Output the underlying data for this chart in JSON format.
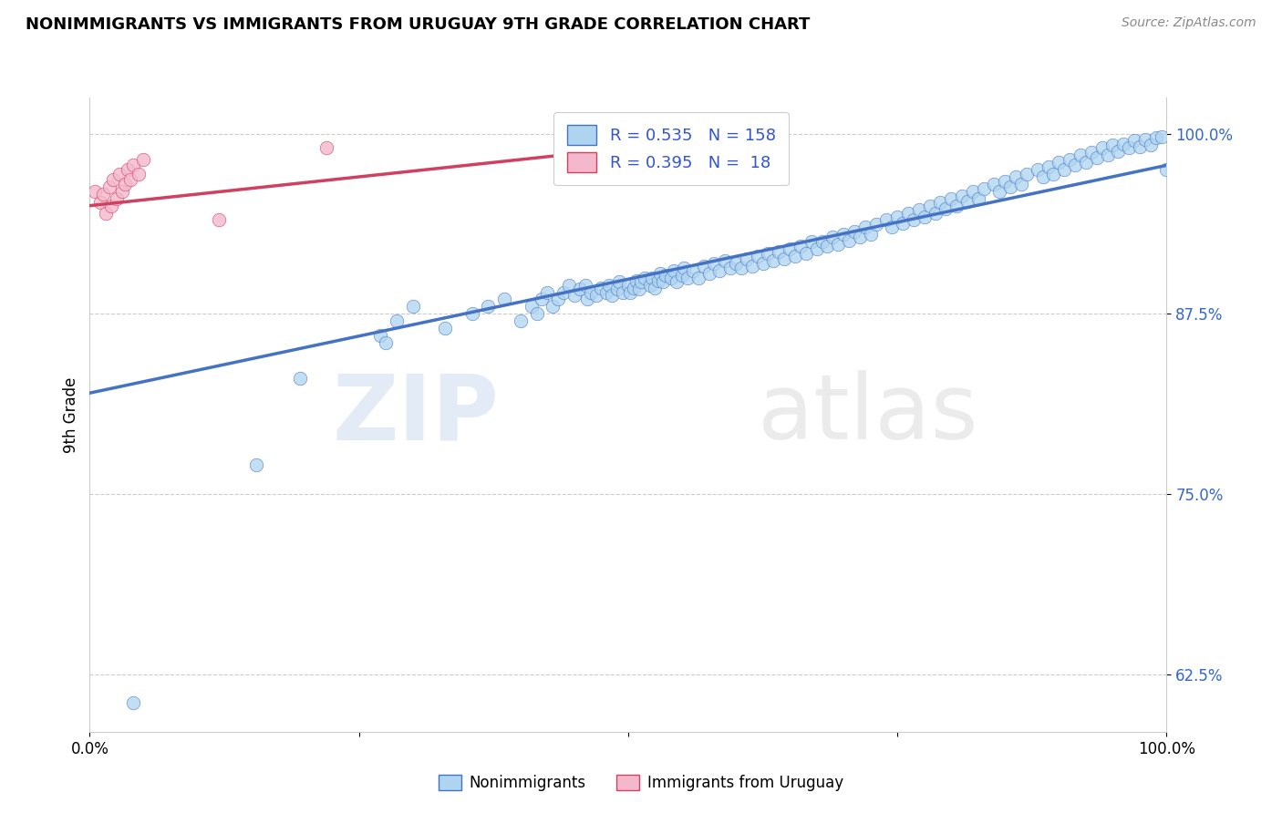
{
  "title": "NONIMMIGRANTS VS IMMIGRANTS FROM URUGUAY 9TH GRADE CORRELATION CHART",
  "source_text": "Source: ZipAtlas.com",
  "ylabel": "9th Grade",
  "xlim": [
    0,
    1
  ],
  "ylim": [
    0.585,
    1.025
  ],
  "yticks": [
    0.625,
    0.75,
    0.875,
    1.0
  ],
  "ytick_labels": [
    "62.5%",
    "75.0%",
    "87.5%",
    "100.0%"
  ],
  "blue_color": "#aed4f0",
  "blue_line_color": "#4472c4",
  "pink_color": "#f4b8cc",
  "pink_line_color": "#d04060",
  "watermark_zip": "ZIP",
  "watermark_atlas": "atlas",
  "legend_r_blue": "R = 0.535",
  "legend_n_blue": "N = 158",
  "legend_r_pink": "R = 0.395",
  "legend_n_pink": "N =  18",
  "blue_scatter_x": [
    0.04,
    0.155,
    0.195,
    0.27,
    0.275,
    0.285,
    0.3,
    0.33,
    0.355,
    0.37,
    0.385,
    0.4,
    0.41,
    0.415,
    0.42,
    0.425,
    0.43,
    0.435,
    0.44,
    0.445,
    0.45,
    0.455,
    0.46,
    0.462,
    0.465,
    0.47,
    0.475,
    0.48,
    0.482,
    0.485,
    0.49,
    0.492,
    0.495,
    0.5,
    0.502,
    0.505,
    0.508,
    0.51,
    0.512,
    0.515,
    0.52,
    0.522,
    0.525,
    0.528,
    0.53,
    0.532,
    0.535,
    0.54,
    0.542,
    0.545,
    0.55,
    0.552,
    0.555,
    0.56,
    0.565,
    0.57,
    0.575,
    0.58,
    0.585,
    0.59,
    0.595,
    0.6,
    0.605,
    0.61,
    0.615,
    0.62,
    0.625,
    0.63,
    0.635,
    0.64,
    0.645,
    0.65,
    0.655,
    0.66,
    0.665,
    0.67,
    0.675,
    0.68,
    0.685,
    0.69,
    0.695,
    0.7,
    0.705,
    0.71,
    0.715,
    0.72,
    0.725,
    0.73,
    0.74,
    0.745,
    0.75,
    0.755,
    0.76,
    0.765,
    0.77,
    0.775,
    0.78,
    0.785,
    0.79,
    0.795,
    0.8,
    0.805,
    0.81,
    0.815,
    0.82,
    0.825,
    0.83,
    0.84,
    0.845,
    0.85,
    0.855,
    0.86,
    0.865,
    0.87,
    0.88,
    0.885,
    0.89,
    0.895,
    0.9,
    0.905,
    0.91,
    0.915,
    0.92,
    0.925,
    0.93,
    0.935,
    0.94,
    0.945,
    0.95,
    0.955,
    0.96,
    0.965,
    0.97,
    0.975,
    0.98,
    0.985,
    0.99,
    0.995,
    1.0
  ],
  "blue_scatter_y": [
    0.605,
    0.77,
    0.83,
    0.86,
    0.855,
    0.87,
    0.88,
    0.865,
    0.875,
    0.88,
    0.885,
    0.87,
    0.88,
    0.875,
    0.885,
    0.89,
    0.88,
    0.885,
    0.89,
    0.895,
    0.888,
    0.892,
    0.895,
    0.885,
    0.89,
    0.888,
    0.893,
    0.89,
    0.895,
    0.888,
    0.892,
    0.897,
    0.89,
    0.895,
    0.89,
    0.893,
    0.898,
    0.892,
    0.897,
    0.9,
    0.895,
    0.9,
    0.893,
    0.898,
    0.903,
    0.897,
    0.902,
    0.9,
    0.905,
    0.897,
    0.902,
    0.907,
    0.9,
    0.905,
    0.9,
    0.908,
    0.903,
    0.91,
    0.905,
    0.912,
    0.907,
    0.91,
    0.907,
    0.913,
    0.908,
    0.915,
    0.91,
    0.917,
    0.912,
    0.918,
    0.913,
    0.92,
    0.915,
    0.922,
    0.917,
    0.925,
    0.92,
    0.925,
    0.922,
    0.928,
    0.923,
    0.93,
    0.926,
    0.932,
    0.928,
    0.935,
    0.93,
    0.937,
    0.94,
    0.935,
    0.942,
    0.938,
    0.945,
    0.94,
    0.947,
    0.942,
    0.95,
    0.945,
    0.952,
    0.948,
    0.955,
    0.95,
    0.957,
    0.953,
    0.96,
    0.955,
    0.962,
    0.965,
    0.96,
    0.967,
    0.963,
    0.97,
    0.965,
    0.972,
    0.975,
    0.97,
    0.977,
    0.972,
    0.98,
    0.975,
    0.982,
    0.978,
    0.985,
    0.98,
    0.987,
    0.983,
    0.99,
    0.985,
    0.992,
    0.988,
    0.993,
    0.99,
    0.995,
    0.991,
    0.996,
    0.992,
    0.997,
    0.998,
    0.975
  ],
  "pink_scatter_x": [
    0.005,
    0.01,
    0.012,
    0.015,
    0.018,
    0.02,
    0.022,
    0.025,
    0.028,
    0.03,
    0.033,
    0.035,
    0.038,
    0.04,
    0.045,
    0.05,
    0.12,
    0.22
  ],
  "pink_scatter_y": [
    0.96,
    0.952,
    0.958,
    0.945,
    0.963,
    0.95,
    0.968,
    0.955,
    0.972,
    0.96,
    0.965,
    0.975,
    0.968,
    0.978,
    0.972,
    0.982,
    0.94,
    0.99
  ],
  "blue_line_x": [
    0.0,
    1.0
  ],
  "blue_line_y": [
    0.82,
    0.978
  ],
  "pink_line_x": [
    0.0,
    0.6
  ],
  "pink_line_y": [
    0.95,
    0.998
  ]
}
